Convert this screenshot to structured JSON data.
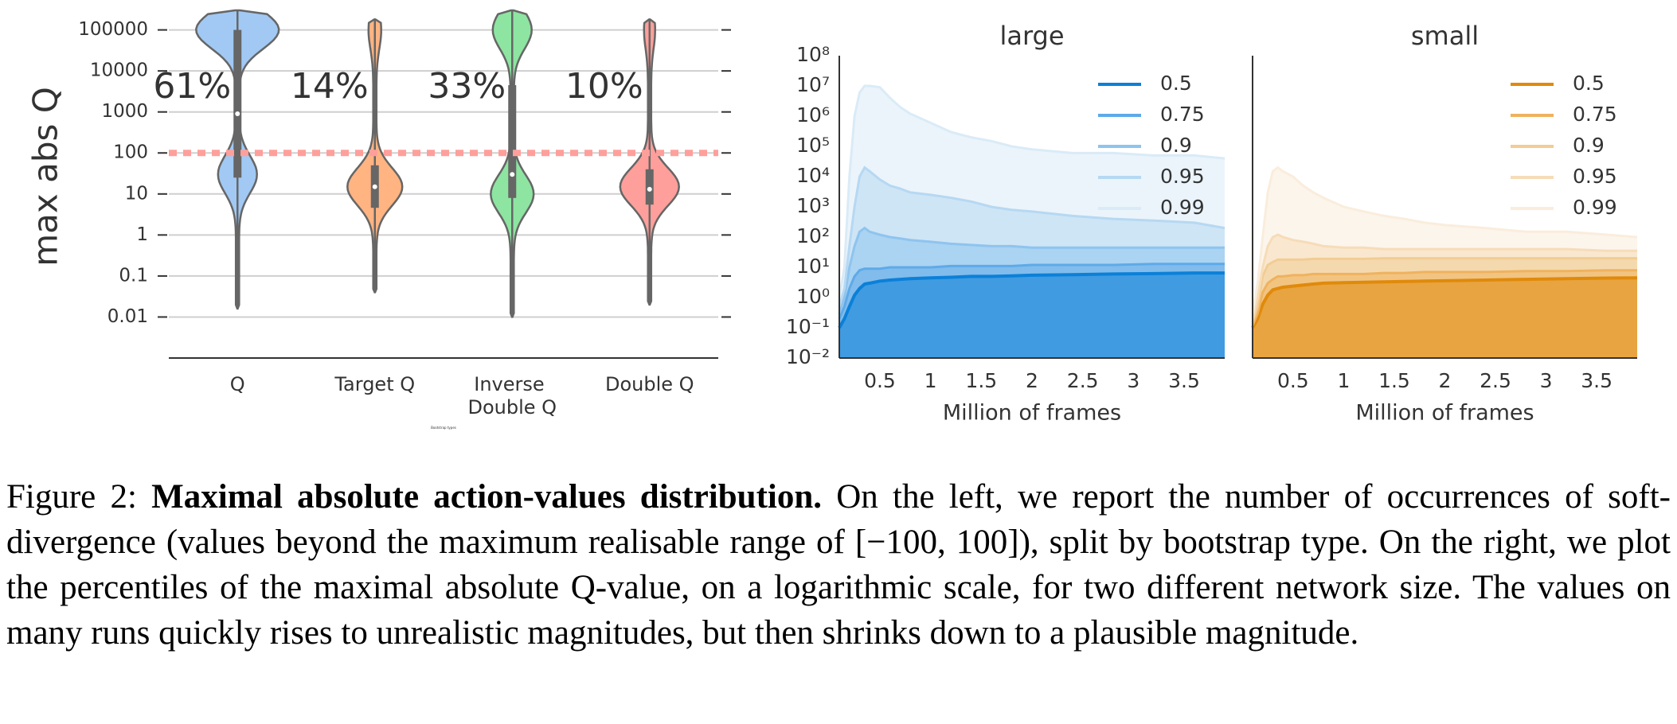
{
  "chart_data": [
    {
      "type": "violin",
      "ylabel": "max abs Q",
      "xlabel": "Bootstrap types",
      "yscale": "log",
      "ylim": [
        0.001,
        300000
      ],
      "yticks": [
        0.01,
        0.1,
        1,
        10,
        100,
        1000,
        10000,
        100000
      ],
      "grid": true,
      "categories": [
        "Q",
        "Target Q",
        "Inverse Double Q",
        "Double Q"
      ],
      "colors": [
        "#a1c9f4",
        "#ffb482",
        "#8de5a1",
        "#ff9f9b"
      ],
      "values": [
        61,
        14,
        33,
        10
      ],
      "value_labels": [
        "61%",
        "14%",
        "33%",
        "10%"
      ],
      "threshold": {
        "value": 100,
        "color": "#ff9f9b"
      },
      "violins": [
        {
          "min": 0.016,
          "max": 300000,
          "q1": 25,
          "median": 900,
          "q3": 100000,
          "modes": [
            [
              100000,
              1.0
            ],
            [
              30,
              0.45
            ]
          ]
        },
        {
          "min": 0.04,
          "max": 180000,
          "q1": 4.6,
          "median": 15,
          "q3": 50,
          "modes": [
            [
              15,
              0.65
            ],
            [
              100000,
              0.12
            ]
          ]
        },
        {
          "min": 0.01,
          "max": 300000,
          "q1": 8,
          "median": 30,
          "q3": 4500,
          "modes": [
            [
              100000,
              0.45
            ],
            [
              10,
              0.5
            ]
          ]
        },
        {
          "min": 0.02,
          "max": 180000,
          "q1": 5.5,
          "median": 13,
          "q3": 40,
          "modes": [
            [
              15,
              0.7
            ],
            [
              100000,
              0.1
            ]
          ]
        }
      ]
    },
    {
      "type": "area",
      "title": "large",
      "xlabel": "Million of frames",
      "yscale": "log",
      "legend": "upper right",
      "xlim": [
        0.1,
        3.9
      ],
      "xticks": [
        0.5,
        1.0,
        1.5,
        2.0,
        2.5,
        3.0,
        3.5
      ],
      "ylim": [
        0.01,
        100000000
      ],
      "yticks": [
        {
          "value": 0.01,
          "label": "10⁻²"
        },
        {
          "value": 0.1,
          "label": "10⁻¹"
        },
        {
          "value": 1,
          "label": "10⁰"
        },
        {
          "value": 10,
          "label": "10¹"
        },
        {
          "value": 100,
          "label": "10²"
        },
        {
          "value": 1000,
          "label": "10³"
        },
        {
          "value": 10000,
          "label": "10⁴"
        },
        {
          "value": 100000,
          "label": "10⁵"
        },
        {
          "value": 1000000,
          "label": "10⁶"
        },
        {
          "value": 10000000,
          "label": "10⁷"
        },
        {
          "value": 100000000,
          "label": "10⁸"
        }
      ],
      "x": [
        0.1,
        0.15,
        0.2,
        0.25,
        0.3,
        0.35,
        0.4,
        0.5,
        0.6,
        0.7,
        0.8,
        1.0,
        1.2,
        1.4,
        1.6,
        1.8,
        2.0,
        2.4,
        2.8,
        3.2,
        3.6,
        3.9
      ],
      "series": [
        {
          "name": "0.5",
          "color": "#0b80d8",
          "values": [
            0.1,
            0.2,
            0.5,
            1.2,
            2,
            2.8,
            3,
            3.5,
            3.8,
            4,
            4.2,
            4.5,
            4.7,
            5,
            5,
            5.2,
            5.5,
            5.7,
            6,
            6.2,
            6.5,
            6.5
          ]
        },
        {
          "name": "0.75",
          "color": "#5eaae8",
          "values": [
            0.2,
            0.5,
            2,
            5,
            8,
            9,
            9,
            9,
            10,
            10,
            10,
            10,
            11,
            11,
            11,
            11,
            12,
            12,
            12,
            13,
            13,
            13
          ]
        },
        {
          "name": "0.9",
          "color": "#8ec4ee",
          "values": [
            0.3,
            1,
            10,
            50,
            150,
            200,
            150,
            120,
            100,
            90,
            80,
            70,
            60,
            55,
            50,
            50,
            45,
            45,
            45,
            45,
            45,
            45
          ]
        },
        {
          "name": "0.95",
          "color": "#b6d8f2",
          "values": [
            0.5,
            2,
            50,
            1000,
            10000,
            20000,
            15000,
            8000,
            5000,
            4000,
            3000,
            2500,
            2000,
            1500,
            1000,
            800,
            700,
            500,
            400,
            350,
            300,
            200
          ]
        },
        {
          "name": "0.99",
          "color": "#daebf7",
          "values": [
            1,
            10,
            10000,
            1000000,
            6000000,
            10000000,
            10000000,
            9000000,
            4000000,
            2000000,
            1200000,
            600000,
            300000,
            200000,
            150000,
            100000,
            80000,
            60000,
            60000,
            50000,
            50000,
            40000
          ]
        }
      ]
    },
    {
      "type": "area",
      "title": "small",
      "xlabel": "Million of frames",
      "yscale": "log",
      "legend": "upper right",
      "xlim": [
        0.1,
        3.9
      ],
      "xticks": [
        0.5,
        1.0,
        1.5,
        2.0,
        2.5,
        3.0,
        3.5
      ],
      "ylim": [
        0.01,
        100000000
      ],
      "x": [
        0.1,
        0.15,
        0.2,
        0.25,
        0.3,
        0.35,
        0.4,
        0.5,
        0.6,
        0.7,
        0.8,
        1.0,
        1.2,
        1.4,
        1.6,
        1.8,
        2.0,
        2.4,
        2.8,
        3.2,
        3.6,
        3.9
      ],
      "series": [
        {
          "name": "0.5",
          "color": "#e08a0b",
          "values": [
            0.1,
            0.2,
            0.6,
            1.2,
            1.8,
            2,
            2.2,
            2.4,
            2.6,
            2.8,
            3,
            3.1,
            3.2,
            3.3,
            3.4,
            3.5,
            3.6,
            3.8,
            4,
            4.2,
            4.4,
            4.5
          ]
        },
        {
          "name": "0.75",
          "color": "#efb25e",
          "values": [
            0.12,
            0.3,
            1.5,
            3,
            4,
            5,
            5,
            5.5,
            5.5,
            6,
            6,
            6,
            6,
            6.5,
            6.5,
            7,
            7,
            7,
            7.5,
            7.5,
            8,
            8
          ]
        },
        {
          "name": "0.9",
          "color": "#f2cc93",
          "values": [
            0.15,
            0.5,
            5,
            12,
            15,
            18,
            18,
            18,
            18,
            19,
            19,
            19,
            19,
            20,
            20,
            20,
            20,
            20,
            20,
            20,
            20,
            20
          ]
        },
        {
          "name": "0.95",
          "color": "#f6dcb8",
          "values": [
            0.2,
            1,
            10,
            50,
            100,
            120,
            100,
            80,
            70,
            60,
            50,
            45,
            45,
            40,
            40,
            40,
            40,
            40,
            40,
            40,
            35,
            35
          ]
        },
        {
          "name": "0.99",
          "color": "#faeddc",
          "values": [
            0.3,
            3,
            100,
            3000,
            15000,
            20000,
            15000,
            10000,
            5000,
            3000,
            2000,
            1000,
            700,
            500,
            400,
            300,
            250,
            200,
            150,
            150,
            120,
            100
          ]
        }
      ]
    }
  ],
  "caption": {
    "label": "Figure 2:",
    "title": "Maximal absolute action-values distribution.",
    "text": "On the left, we report the number of occurrences of soft-divergence (values beyond the maximum realisable range of [−100, 100]), split by bootstrap type. On the right, we plot the percentiles of the maximal absolute Q-value, on a logarithmic scale, for two different network size. The values on many runs quickly rises to unrealistic magnitudes, but then shrinks down to a plausible magnitude."
  }
}
